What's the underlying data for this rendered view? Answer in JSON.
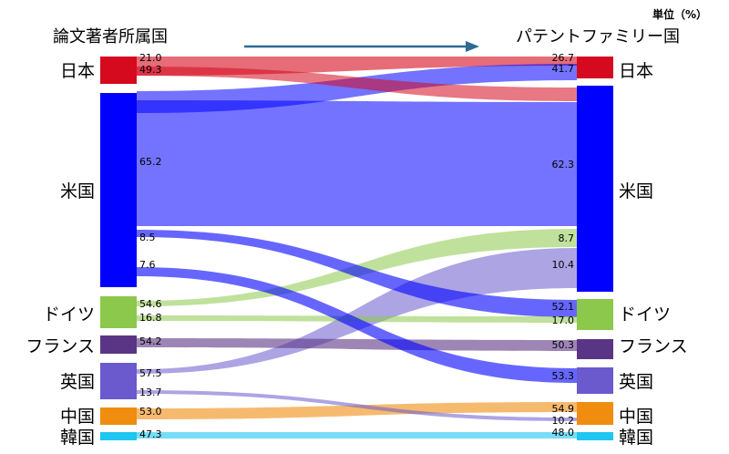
{
  "chart_data": {
    "type": "sankey",
    "unit_label": "単位（%）",
    "left_title": "論文著者所属国",
    "right_title": "パテントファミリー国",
    "left_nodes": [
      {
        "id": "jp",
        "label": "日本",
        "color": "#d50a1e"
      },
      {
        "id": "us",
        "label": "米国",
        "color": "#0000ff"
      },
      {
        "id": "de",
        "label": "ドイツ",
        "color": "#8cc84b"
      },
      {
        "id": "fr",
        "label": "フランス",
        "color": "#5b3585"
      },
      {
        "id": "uk",
        "label": "英国",
        "color": "#6a5acd"
      },
      {
        "id": "cn",
        "label": "中国",
        "color": "#f08c0f"
      },
      {
        "id": "kr",
        "label": "韓国",
        "color": "#1ec6f0"
      }
    ],
    "right_nodes": [
      {
        "id": "jp",
        "label": "日本",
        "color": "#d50a1e"
      },
      {
        "id": "us",
        "label": "米国",
        "color": "#0000ff"
      },
      {
        "id": "de",
        "label": "ドイツ",
        "color": "#8cc84b"
      },
      {
        "id": "fr",
        "label": "フランス",
        "color": "#5b3585"
      },
      {
        "id": "uk",
        "label": "英国",
        "color": "#6a5acd"
      },
      {
        "id": "cn",
        "label": "中国",
        "color": "#f08c0f"
      },
      {
        "id": "kr",
        "label": "韓国",
        "color": "#1ec6f0"
      }
    ],
    "flows": [
      {
        "from": "jp",
        "to": "jp",
        "left_label": "21.0",
        "right_label": "26.7"
      },
      {
        "from": "us",
        "to": "jp",
        "left_label": "",
        "right_label": "41.7"
      },
      {
        "from": "jp",
        "to": "us",
        "left_label": "49.3",
        "right_label": ""
      },
      {
        "from": "us",
        "to": "us",
        "left_label": "65.2",
        "right_label": "62.3"
      },
      {
        "from": "de",
        "to": "us",
        "left_label": "54.6",
        "right_label": "8.7"
      },
      {
        "from": "uk",
        "to": "us",
        "left_label": "57.5",
        "right_label": "10.4"
      },
      {
        "from": "us",
        "to": "de",
        "left_label": "8.5",
        "right_label": "52.1"
      },
      {
        "from": "de",
        "to": "de",
        "left_label": "16.8",
        "right_label": "17.0"
      },
      {
        "from": "fr",
        "to": "fr",
        "left_label": "54.2",
        "right_label": "50.3"
      },
      {
        "from": "us",
        "to": "uk",
        "left_label": "7.6",
        "right_label": "53.3"
      },
      {
        "from": "cn",
        "to": "cn",
        "left_label": "53.0",
        "right_label": "54.9"
      },
      {
        "from": "uk",
        "to": "cn",
        "left_label": "13.7",
        "right_label": "10.2"
      },
      {
        "from": "kr",
        "to": "kr",
        "left_label": "47.3",
        "right_label": "48.0"
      }
    ]
  }
}
